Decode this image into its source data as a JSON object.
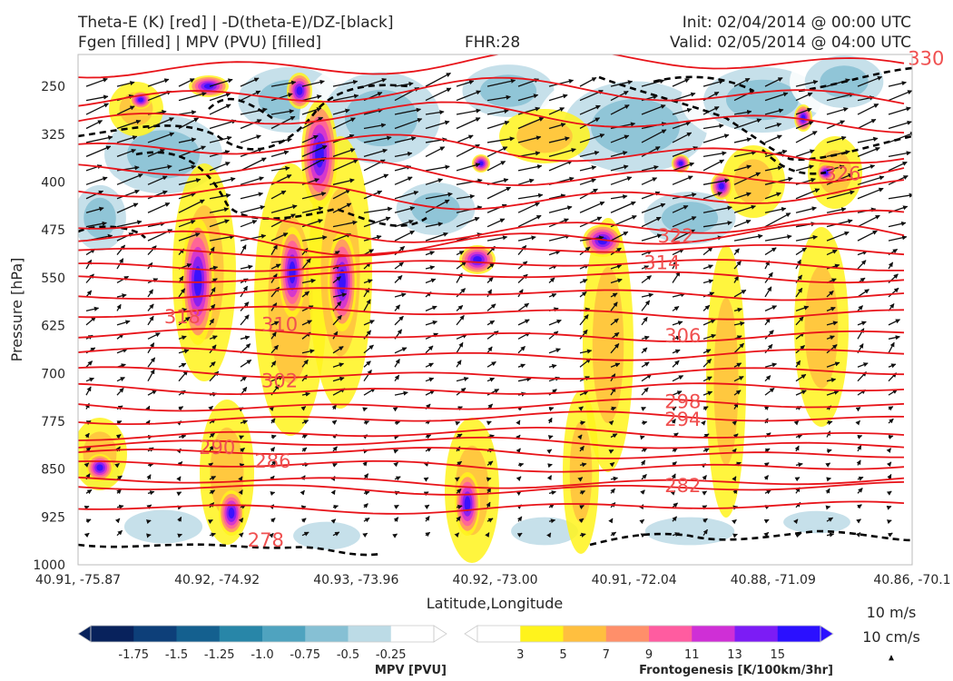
{
  "header": {
    "title_left_1": "Theta-E (K) [red] | -D(theta-E)/DZ-[black]",
    "title_left_2": "Fgen [filled] | MPV (PVU) [filled]",
    "fhr": "FHR:28",
    "init": "Init: 02/04/2014 @ 00:00 UTC",
    "valid": "Valid: 02/05/2014 @ 04:00 UTC"
  },
  "chart_data": {
    "type": "contour",
    "xlabel": "Latitude,Longitude",
    "ylabel": "Pressure [hPa]",
    "y_ticks": [
      250,
      325,
      400,
      475,
      550,
      625,
      700,
      775,
      850,
      925,
      1000
    ],
    "ylim": [
      1000,
      200
    ],
    "x_ticks": [
      "40.91, -75.87",
      "40.92, -74.92",
      "40.93, -73.96",
      "40.92, -73.00",
      "40.91, -72.04",
      "40.88, -71.09",
      "40.86, -70.1"
    ],
    "theta_e_contour_labels": [
      {
        "value": "330",
        "x": 6.1,
        "p": 205
      },
      {
        "value": "326",
        "x": 5.5,
        "p": 386
      },
      {
        "value": "322",
        "x": 4.3,
        "p": 483
      },
      {
        "value": "314",
        "x": 4.2,
        "p": 525
      },
      {
        "value": "318",
        "x": 0.75,
        "p": 610
      },
      {
        "value": "310",
        "x": 1.45,
        "p": 622
      },
      {
        "value": "306",
        "x": 4.35,
        "p": 640
      },
      {
        "value": "302",
        "x": 1.45,
        "p": 710
      },
      {
        "value": "298",
        "x": 4.35,
        "p": 743
      },
      {
        "value": "294",
        "x": 4.35,
        "p": 771
      },
      {
        "value": "290",
        "x": 1.0,
        "p": 815
      },
      {
        "value": "286",
        "x": 1.4,
        "p": 836
      },
      {
        "value": "282",
        "x": 4.35,
        "p": 875
      },
      {
        "value": "278",
        "x": 1.35,
        "p": 960
      }
    ],
    "mpv_colorbar": {
      "label": "MPV [PVU]",
      "ticks": [
        "-1.75",
        "-1.5",
        "-1.25",
        "-1.0",
        "-0.75",
        "-0.5",
        "-0.25"
      ],
      "colors": [
        "#08225c",
        "#0d3f79",
        "#14608f",
        "#2886a8",
        "#4fa3bf",
        "#86c0d4",
        "#bcdbe6",
        "#ffffff"
      ]
    },
    "fgen_colorbar": {
      "label": "Frontogenesis [K/100km/3hr]",
      "ticks": [
        "3",
        "5",
        "7",
        "9",
        "11",
        "13",
        "15"
      ],
      "colors": [
        "#ffffff",
        "#fff31c",
        "#ffbf3f",
        "#ff8f6a",
        "#ff5ca0",
        "#cf2fd6",
        "#7c1cf5",
        "#2b10ff"
      ]
    },
    "vector_reference": {
      "horizontal": "10 m/s",
      "vertical": "10 cm/s"
    }
  }
}
